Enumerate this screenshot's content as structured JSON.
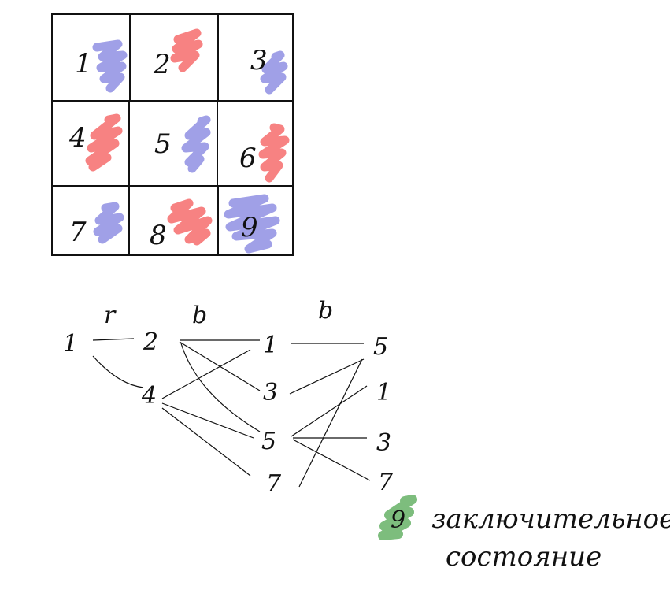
{
  "grid": {
    "cells": [
      {
        "label": "1",
        "color": "blue"
      },
      {
        "label": "2",
        "color": "red"
      },
      {
        "label": "3",
        "color": "blue"
      },
      {
        "label": "4",
        "color": "red"
      },
      {
        "label": "5",
        "color": "blue"
      },
      {
        "label": "6",
        "color": "red"
      },
      {
        "label": "7",
        "color": "blue"
      },
      {
        "label": "8",
        "color": "red"
      },
      {
        "label": "9",
        "color": "blue"
      }
    ]
  },
  "colors": {
    "blue": "#9b9be6",
    "red": "#f77b7b",
    "green": "#7dbd7d",
    "ink": "#111111"
  },
  "graph": {
    "edge_labels": [
      {
        "id": "r",
        "text": "r"
      },
      {
        "id": "b1",
        "text": "b"
      },
      {
        "id": "b2",
        "text": "b"
      }
    ],
    "nodes": [
      {
        "id": "n1",
        "text": "1"
      },
      {
        "id": "n2",
        "text": "2"
      },
      {
        "id": "n4",
        "text": "4"
      },
      {
        "id": "m1",
        "text": "1"
      },
      {
        "id": "m3",
        "text": "3"
      },
      {
        "id": "m5",
        "text": "5"
      },
      {
        "id": "m7",
        "text": "7"
      },
      {
        "id": "r5",
        "text": "5"
      },
      {
        "id": "r1",
        "text": "1"
      },
      {
        "id": "r3",
        "text": "3"
      },
      {
        "id": "r7",
        "text": "7"
      },
      {
        "id": "r9",
        "text": "9"
      }
    ],
    "edges": [
      [
        "n1",
        "n2"
      ],
      [
        "n1",
        "n4"
      ],
      [
        "n2",
        "m1"
      ],
      [
        "n2",
        "m3"
      ],
      [
        "n2",
        "m5"
      ],
      [
        "n4",
        "m1"
      ],
      [
        "n4",
        "m5"
      ],
      [
        "n4",
        "m7"
      ],
      [
        "m1",
        "r5"
      ],
      [
        "m3",
        "r5"
      ],
      [
        "m5",
        "r1"
      ],
      [
        "m5",
        "r3"
      ],
      [
        "m5",
        "r7"
      ],
      [
        "m7",
        "r5"
      ]
    ]
  },
  "final_state_note": {
    "line1": "заключительное",
    "line2": "состояние"
  }
}
